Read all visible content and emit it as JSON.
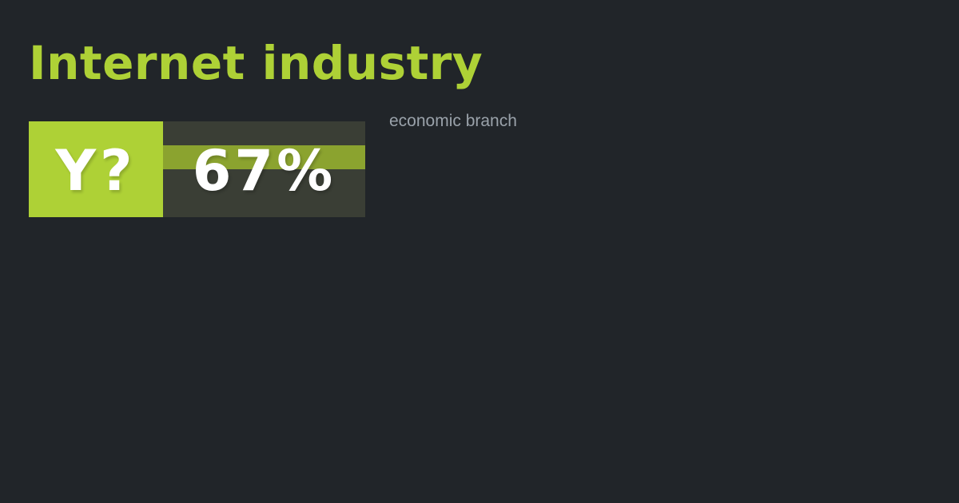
{
  "card": {
    "title": "Internet industry",
    "subtitle": "economic branch",
    "stat": {
      "logo": "Y?",
      "value": "67%"
    }
  },
  "colors": {
    "background": "#212529",
    "lime": "#aed136",
    "olive_stripe": "#8ba32f",
    "dark_box": "#3a3e35",
    "subtitle_gray": "#9aa2aa",
    "text_white": "#ffffff"
  }
}
